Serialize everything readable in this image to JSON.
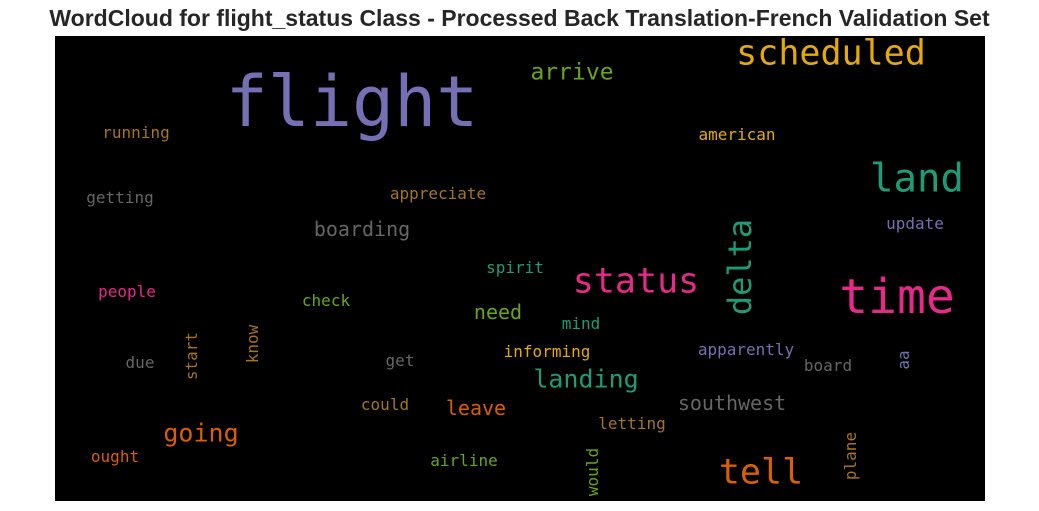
{
  "title": "WordCloud for flight_status Class - Processed Back Translation-French Validation Set",
  "colors": {
    "background": "#000000",
    "palette": [
      "#7570b3",
      "#d95f02",
      "#1b9e77",
      "#e7298a",
      "#66a61e",
      "#e6ab02",
      "#a6761d",
      "#666666"
    ]
  },
  "words": [
    {
      "text": "flight",
      "color": "#7570b3"
    },
    {
      "text": "scheduled",
      "color": "#e6ab02"
    },
    {
      "text": "arrive",
      "color": "#66a61e"
    },
    {
      "text": "running",
      "color": "#a6761d"
    },
    {
      "text": "american",
      "color": "#e6ab02"
    },
    {
      "text": "land",
      "color": "#1b9e77"
    },
    {
      "text": "getting",
      "color": "#666666"
    },
    {
      "text": "appreciate",
      "color": "#a6761d"
    },
    {
      "text": "boarding",
      "color": "#666666"
    },
    {
      "text": "update",
      "color": "#7570b3"
    },
    {
      "text": "delta",
      "color": "#1b9e77"
    },
    {
      "text": "status",
      "color": "#e7298a"
    },
    {
      "text": "time",
      "color": "#e7298a"
    },
    {
      "text": "spirit",
      "color": "#1b9e77"
    },
    {
      "text": "people",
      "color": "#e7298a"
    },
    {
      "text": "check",
      "color": "#66a61e"
    },
    {
      "text": "need",
      "color": "#66a61e"
    },
    {
      "text": "mind",
      "color": "#1b9e77"
    },
    {
      "text": "start",
      "color": "#a6761d"
    },
    {
      "text": "know",
      "color": "#a6761d"
    },
    {
      "text": "apparently",
      "color": "#7570b3"
    },
    {
      "text": "due",
      "color": "#666666"
    },
    {
      "text": "get",
      "color": "#666666"
    },
    {
      "text": "informing",
      "color": "#e6ab02"
    },
    {
      "text": "board",
      "color": "#666666"
    },
    {
      "text": "aa",
      "color": "#7570b3"
    },
    {
      "text": "landing",
      "color": "#1b9e77"
    },
    {
      "text": "southwest",
      "color": "#666666"
    },
    {
      "text": "could",
      "color": "#a6761d"
    },
    {
      "text": "leave",
      "color": "#d95f02"
    },
    {
      "text": "going",
      "color": "#d95f02"
    },
    {
      "text": "letting",
      "color": "#a6761d"
    },
    {
      "text": "plane",
      "color": "#a6761d"
    },
    {
      "text": "ought",
      "color": "#d95f02"
    },
    {
      "text": "airline",
      "color": "#66a61e"
    },
    {
      "text": "would",
      "color": "#66a61e"
    },
    {
      "text": "tell",
      "color": "#d95f02"
    }
  ]
}
